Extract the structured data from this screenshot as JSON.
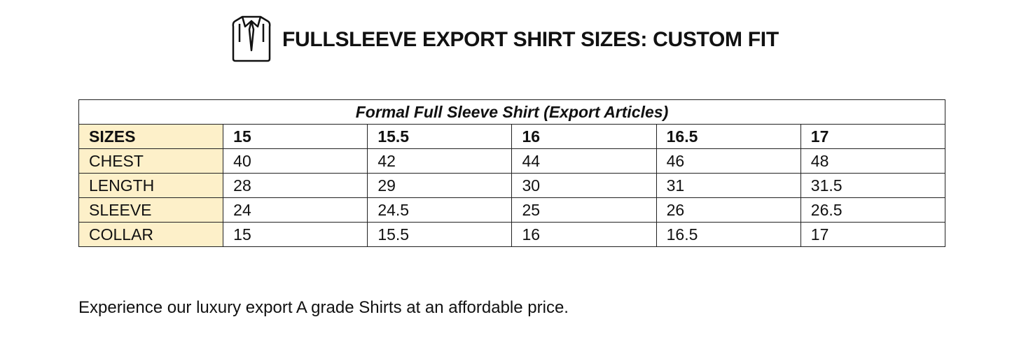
{
  "header": {
    "title": "FULLSLEEVE EXPORT SHIRT SIZES: CUSTOM FIT"
  },
  "table": {
    "caption": "Formal Full Sleeve Shirt (Export Articles)",
    "header": [
      "SIZES",
      15,
      15.5,
      16,
      16.5,
      17
    ],
    "rows": [
      [
        "CHEST",
        40,
        42,
        44,
        46,
        48
      ],
      [
        "LENGTH",
        28,
        29,
        30,
        31,
        31.5
      ],
      [
        "SLEEVE",
        24,
        24.5,
        25,
        26,
        26.5
      ],
      [
        "COLLAR",
        15,
        15.5,
        16,
        16.5,
        17
      ]
    ]
  },
  "footer": {
    "text": "Experience our luxury export A grade Shirts at an affordable price."
  }
}
